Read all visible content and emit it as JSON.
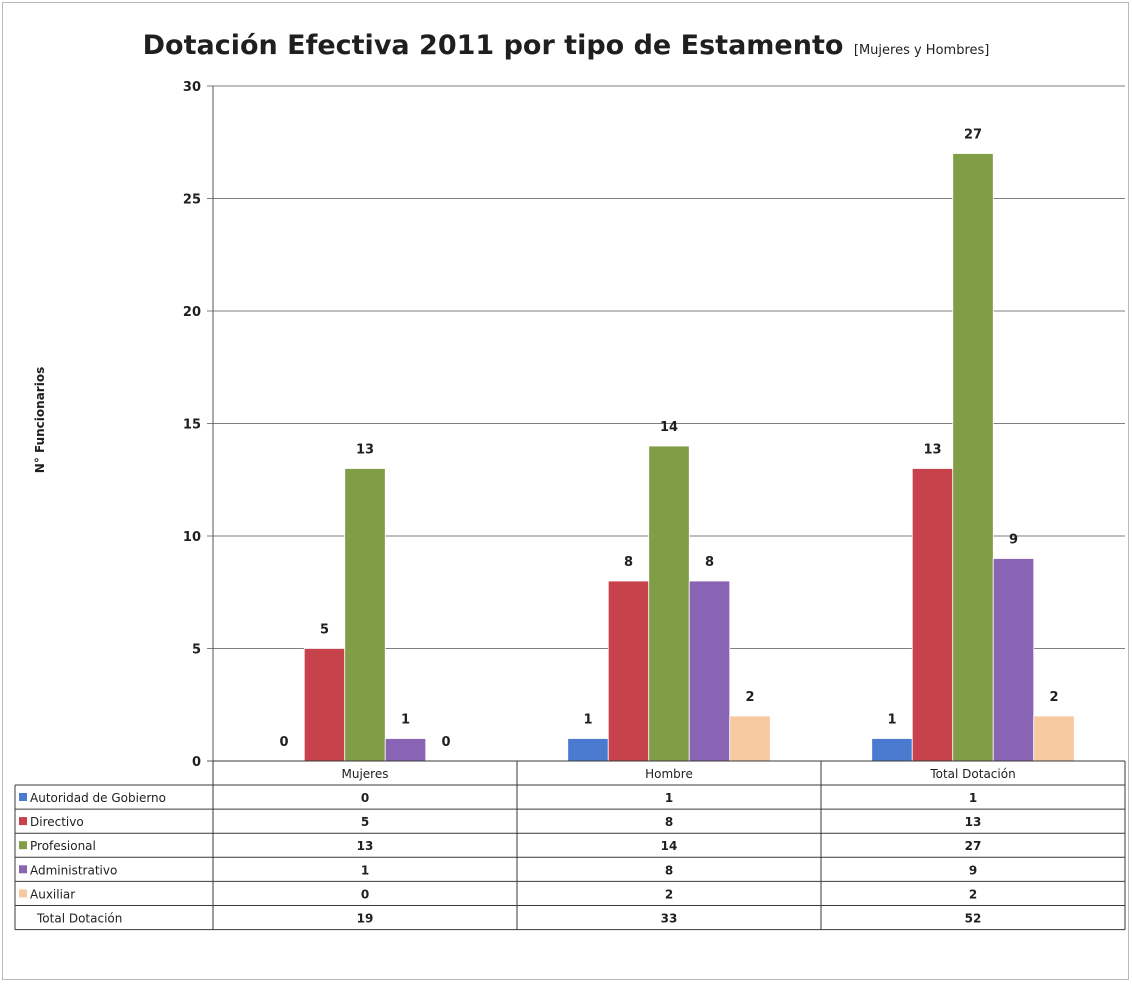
{
  "chart_data": {
    "type": "bar",
    "title": "Dotación Efectiva 2011 por tipo de Estamento",
    "subtitle": "[Mujeres y Hombres]",
    "ylabel": "N° Funcionarios",
    "xlabel": "",
    "ylim": [
      0,
      30
    ],
    "yticks": [
      0,
      5,
      10,
      15,
      20,
      25,
      30
    ],
    "grid": true,
    "legend": "data-table-left",
    "categories": [
      "Mujeres",
      "Hombre",
      "Total Dotación"
    ],
    "series": [
      {
        "name": "Autoridad de Gobierno",
        "color": "#4a7bd0",
        "values": [
          0,
          1,
          1
        ]
      },
      {
        "name": "Directivo",
        "color": "#c8424b",
        "values": [
          5,
          8,
          13
        ]
      },
      {
        "name": "Profesional",
        "color": "#7f9e45",
        "values": [
          13,
          14,
          27
        ]
      },
      {
        "name": "Administrativo",
        "color": "#8a64b4",
        "values": [
          1,
          8,
          9
        ]
      },
      {
        "name": "Auxiliar",
        "color": "#f6c9a0",
        "values": [
          0,
          2,
          2
        ]
      }
    ],
    "total_row": {
      "name": "Total Dotación",
      "values": [
        19,
        33,
        52
      ]
    }
  }
}
